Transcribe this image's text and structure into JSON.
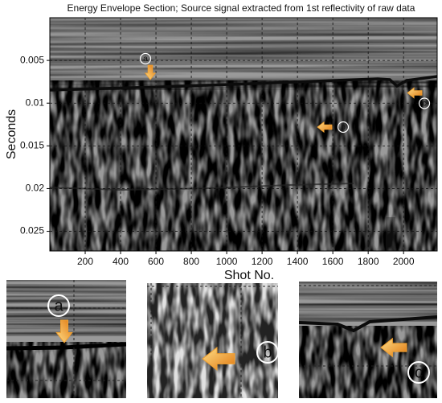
{
  "chart_data": {
    "type": "seismic-section",
    "title": "Energy Envelope Section; Source signal extracted from 1st reflectivity of raw data",
    "x_label": "Shot No.",
    "y_label": "Seconds",
    "xlim": [
      0,
      2190
    ],
    "ylim": [
      0,
      0.0273
    ],
    "xticks": [
      200,
      400,
      600,
      800,
      1000,
      1200,
      1400,
      1600,
      1800,
      2000
    ],
    "yticks": [
      0.005,
      0.01,
      0.015,
      0.02,
      0.025
    ],
    "y_inverted": true,
    "grid": true,
    "annotations": [
      {
        "label": "a",
        "x": 568,
        "y": 0.0064,
        "direction": "down",
        "color": "#f0a030"
      },
      {
        "label": "b",
        "x": 1554,
        "y": 0.0128,
        "direction": "left",
        "color": "#f0a030"
      },
      {
        "label": "c",
        "x": 2063,
        "y": 0.0088,
        "direction": "left",
        "color": "#f0a030"
      }
    ]
  }
}
